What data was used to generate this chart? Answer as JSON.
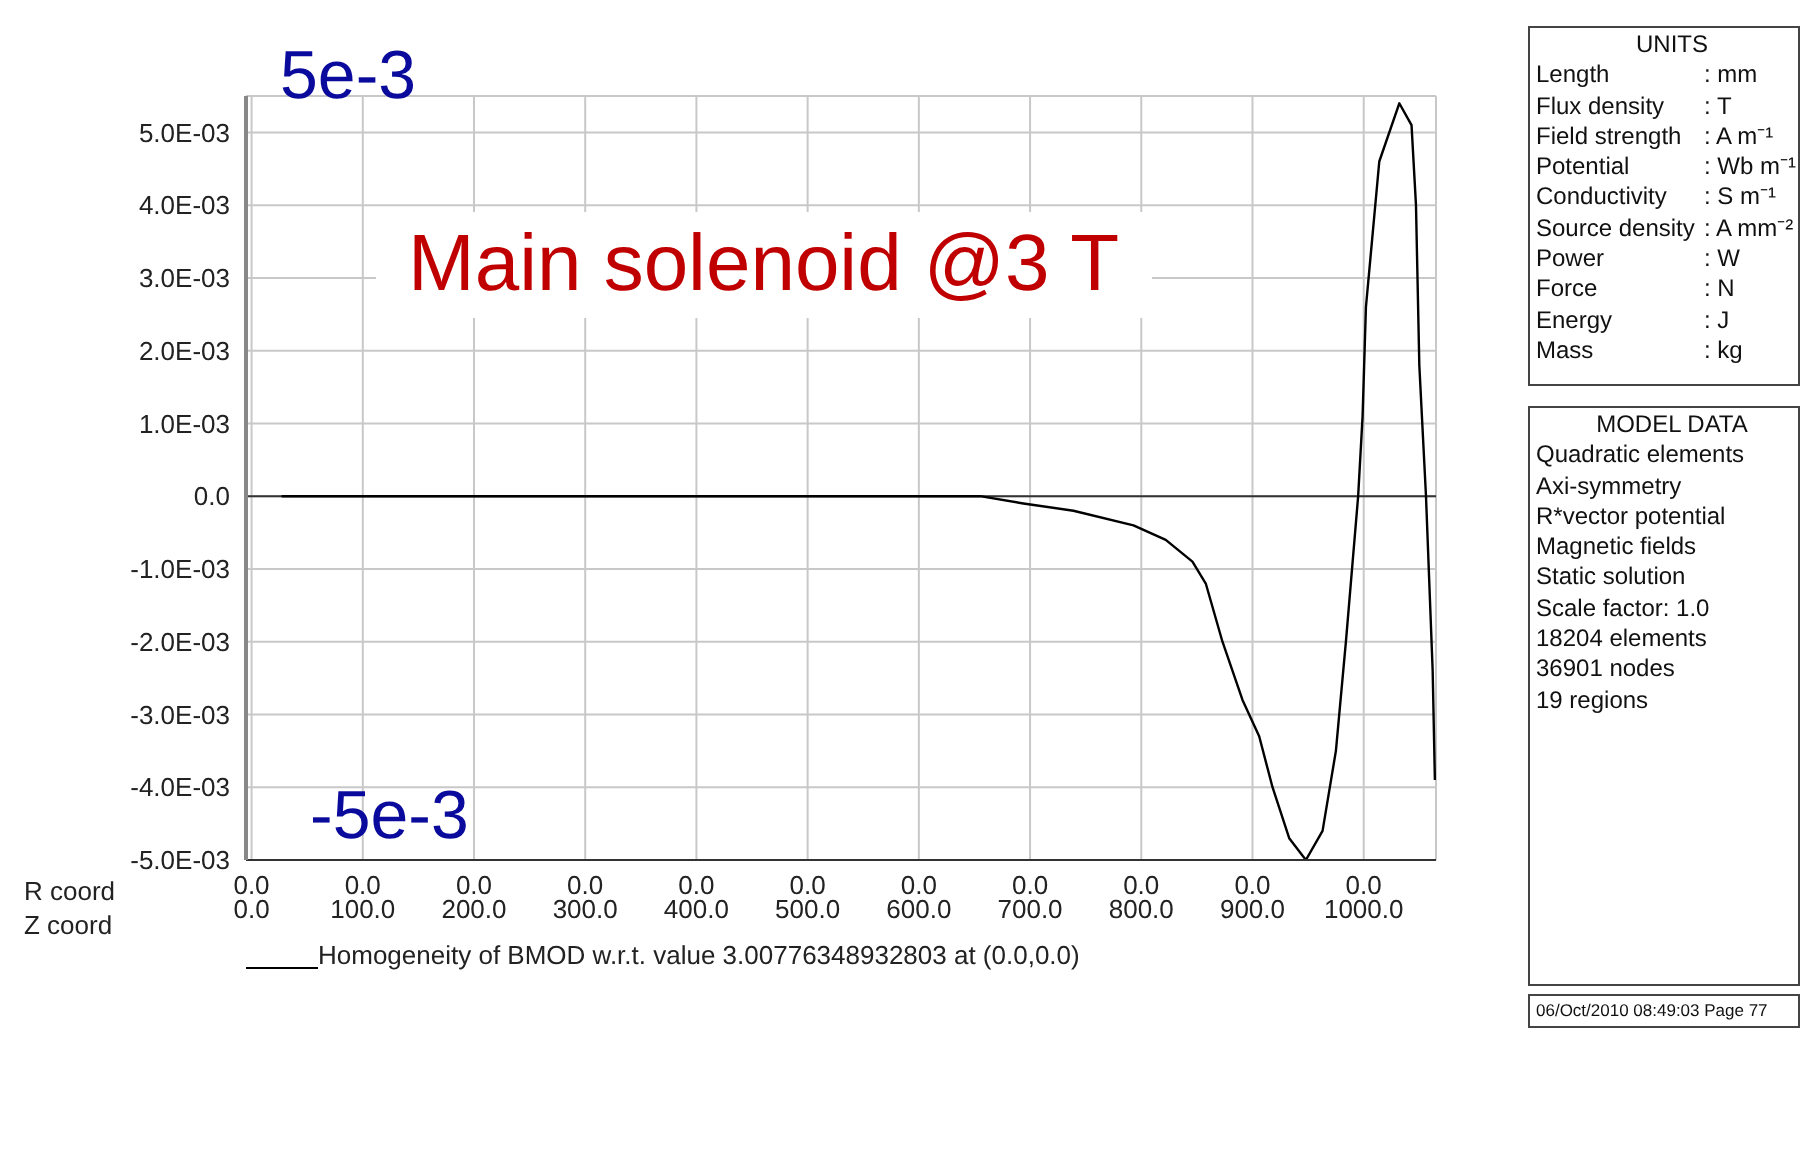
{
  "chart_data": [
    {
      "type": "line",
      "title": "Main solenoid @3 T",
      "series": [
        {
          "name": "Homogeneity of BMOD w.r.t. value 3.00776348932803 at (0.0,0.0)",
          "color": "#000000",
          "x": [
            27,
            150,
            304,
            601,
            655,
            694,
            739,
            793,
            822,
            846,
            858,
            873,
            891,
            906,
            918,
            933,
            948,
            963,
            975,
            984,
            995,
            999,
            1002,
            1014,
            1032,
            1043,
            1047,
            1050,
            1056,
            1062,
            1064
          ],
          "values": [
            0,
            0,
            0,
            0,
            0,
            -0.0001,
            -0.0002,
            -0.0004,
            -0.0006,
            -0.0009,
            -0.0012,
            -0.002,
            -0.0028,
            -0.0033,
            -0.004,
            -0.0047,
            -0.005,
            -0.0046,
            -0.0035,
            -0.002,
            0,
            0.0011,
            0.0026,
            0.0046,
            0.0054,
            0.0051,
            0.004,
            0.0018,
            0,
            -0.0024,
            -0.0039
          ]
        }
      ],
      "xlabel": "Z coord",
      "xlim": [
        -5,
        1065
      ],
      "xticks": [
        {
          "value": 0,
          "label": "0.0"
        },
        {
          "value": 100,
          "label": "100.0"
        },
        {
          "value": 200,
          "label": "200.0"
        },
        {
          "value": 300,
          "label": "300.0"
        },
        {
          "value": 400,
          "label": "400.0"
        },
        {
          "value": 500,
          "label": "500.0"
        },
        {
          "value": 600,
          "label": "600.0"
        },
        {
          "value": 700,
          "label": "700.0"
        },
        {
          "value": 800,
          "label": "800.0"
        },
        {
          "value": 900,
          "label": "900.0"
        },
        {
          "value": 1000,
          "label": "1000.0"
        }
      ],
      "ylim": [
        -0.005,
        0.0055
      ],
      "yticks": [
        {
          "value": 0.005,
          "label": "5.0E-03"
        },
        {
          "value": 0.004,
          "label": "4.0E-03"
        },
        {
          "value": 0.003,
          "label": "3.0E-03"
        },
        {
          "value": 0.002,
          "label": "2.0E-03"
        },
        {
          "value": 0.001,
          "label": "1.0E-03"
        },
        {
          "value": 0,
          "label": "0.0"
        },
        {
          "value": -0.001,
          "label": "-1.0E-03"
        },
        {
          "value": -0.002,
          "label": "-2.0E-03"
        },
        {
          "value": -0.003,
          "label": "-3.0E-03"
        },
        {
          "value": -0.004,
          "label": "-4.0E-03"
        },
        {
          "value": -0.005,
          "label": "-5.0E-03"
        }
      ],
      "ref_lines": [
        {
          "axis": "y",
          "value": 0,
          "color": "#333333"
        }
      ],
      "grid": true,
      "legend": "bottom",
      "marker": "none",
      "line_style": "solid",
      "annotations": [
        "5e-3",
        "-5e-3",
        "R coord",
        "0.0",
        "0.0",
        "0.0",
        "0.0",
        "0.0",
        "0.0",
        "0.0",
        "0.0",
        "0.0",
        "0.0",
        "0.0"
      ]
    },
    {
      "type": "other",
      "title": "UNITS",
      "annotations": [
        "Length",
        ": mm",
        "Flux density",
        ": T",
        "Field strength",
        ": A m⁻¹",
        "Potential",
        ": Wb m⁻¹",
        "Conductivity",
        ": S m⁻¹",
        "Source density",
        ": A mm⁻²",
        "Power",
        ": W",
        "Force",
        ": N",
        "Energy",
        ": J",
        "Mass",
        ": kg"
      ]
    },
    {
      "type": "other",
      "title": "MODEL DATA",
      "annotations": [
        "Quadratic elements",
        "Axi-symmetry",
        "R*vector potential",
        "Magnetic fields",
        "Static solution",
        "Scale factor: 1.0",
        "18204 elements",
        "36901 nodes",
        "19 regions"
      ]
    },
    {
      "type": "other",
      "annotations": [
        "06/Oct/2010 08:49:03 Page 77"
      ]
    }
  ]
}
